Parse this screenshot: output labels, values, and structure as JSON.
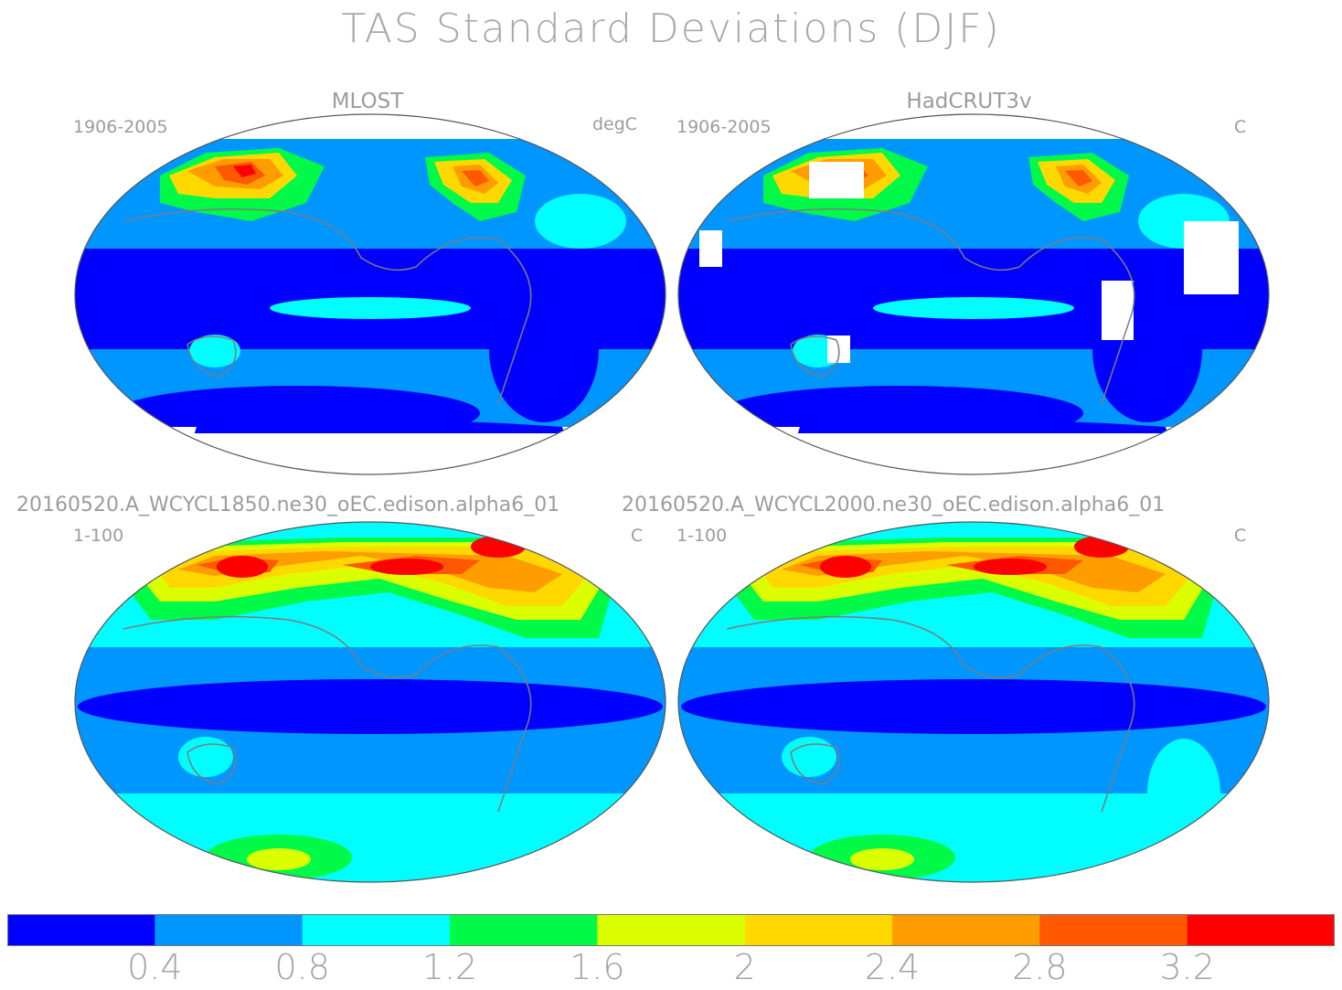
{
  "title": "TAS Standard Deviations (DJF)",
  "panels": [
    {
      "name": "MLOST",
      "period": "1906-2005",
      "units": "degC",
      "style": "obs"
    },
    {
      "name": "HadCRUT3v",
      "period": "1906-2005",
      "units": "C",
      "style": "obs-gaps"
    },
    {
      "name": "20160520.A_WCYCL1850.ne30_oEC.edison.alpha6_01",
      "period": "1-100",
      "units": "C",
      "style": "model"
    },
    {
      "name": "20160520.A_WCYCL2000.ne30_oEC.edison.alpha6_01",
      "period": "1-100",
      "units": "C",
      "style": "model2"
    }
  ],
  "colorbar": {
    "colors": [
      "#0000ff",
      "#0096ff",
      "#00fdff",
      "#00fa47",
      "#dcff00",
      "#ffd800",
      "#ff9c00",
      "#ff5800",
      "#ff0000"
    ],
    "tick_labels": [
      "0.4",
      "0.8",
      "1.2",
      "1.6",
      "2",
      "2.4",
      "2.8",
      "3.2"
    ],
    "tick_values": [
      0.4,
      0.8,
      1.2,
      1.6,
      2.0,
      2.4,
      2.8,
      3.2
    ]
  }
}
